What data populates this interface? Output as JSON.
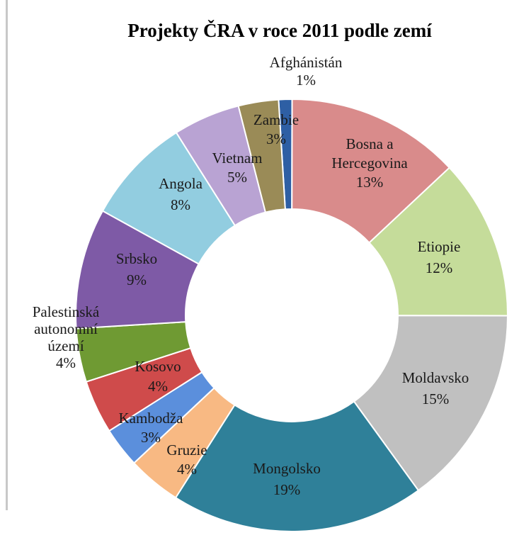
{
  "chart_data": {
    "type": "pie",
    "variant": "doughnut",
    "title": "Projekty ČRA v roce 2011 podle zemí",
    "slices": [
      {
        "label": "Afghánistán",
        "percent_label": "1%",
        "value": 1,
        "color": "#2e5fa4"
      },
      {
        "label": "Bosna a Hercegovina",
        "percent_label": "13%",
        "value": 13,
        "color": "#d98b8b"
      },
      {
        "label": "Etiopie",
        "percent_label": "12%",
        "value": 12,
        "color": "#c5dc9a"
      },
      {
        "label": "Moldavsko",
        "percent_label": "15%",
        "value": 15,
        "color": "#c0c0c0"
      },
      {
        "label": "Mongolsko",
        "percent_label": "19%",
        "value": 19,
        "color": "#2f8099"
      },
      {
        "label": "Gruzie",
        "percent_label": "4%",
        "value": 4,
        "color": "#f8b983"
      },
      {
        "label": "Kambodža",
        "percent_label": "3%",
        "value": 3,
        "color": "#5b8fdc"
      },
      {
        "label": "Kosovo",
        "percent_label": "4%",
        "value": 4,
        "color": "#cf4b4b"
      },
      {
        "label": "Palestinská autonomní území",
        "percent_label": "4%",
        "value": 4,
        "color": "#6f9a33"
      },
      {
        "label": "Srbsko",
        "percent_label": "9%",
        "value": 9,
        "color": "#7e5aa6"
      },
      {
        "label": "Angola",
        "percent_label": "8%",
        "value": 8,
        "color": "#92cde0"
      },
      {
        "label": "Vietnam",
        "percent_label": "5%",
        "value": 5,
        "color": "#b9a3d3"
      },
      {
        "label": "Zambie",
        "percent_label": "3%",
        "value": 3,
        "color": "#9a8b57"
      }
    ]
  }
}
